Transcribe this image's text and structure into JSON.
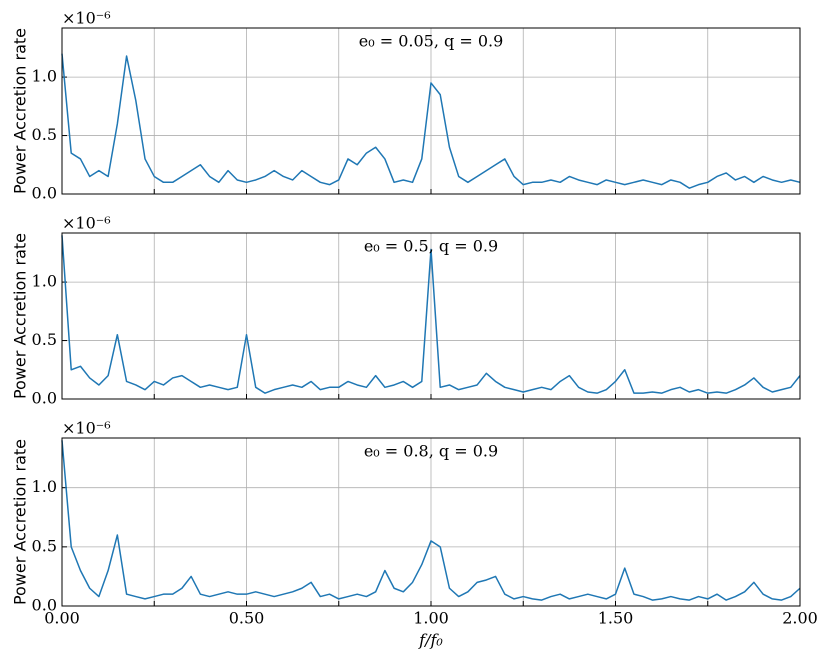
{
  "chart_data": [
    {
      "type": "line",
      "title": "e₀ = 0.05, q = 0.9",
      "offset_text": "×10⁻⁶",
      "y_label": "Power Accretion rate",
      "x": [
        0,
        0.025,
        0.05,
        0.075,
        0.1,
        0.125,
        0.15,
        0.175,
        0.2,
        0.225,
        0.25,
        0.275,
        0.3,
        0.325,
        0.35,
        0.375,
        0.4,
        0.425,
        0.45,
        0.475,
        0.5,
        0.525,
        0.55,
        0.575,
        0.6,
        0.625,
        0.65,
        0.675,
        0.7,
        0.725,
        0.75,
        0.775,
        0.8,
        0.825,
        0.85,
        0.875,
        0.9,
        0.925,
        0.95,
        0.975,
        1,
        1.025,
        1.05,
        1.075,
        1.1,
        1.125,
        1.15,
        1.175,
        1.2,
        1.225,
        1.25,
        1.275,
        1.3,
        1.325,
        1.35,
        1.375,
        1.4,
        1.425,
        1.45,
        1.475,
        1.5,
        1.525,
        1.55,
        1.575,
        1.6,
        1.625,
        1.65,
        1.675,
        1.7,
        1.725,
        1.75,
        1.775,
        1.8,
        1.825,
        1.85,
        1.875,
        1.9,
        1.925,
        1.95,
        1.975,
        2
      ],
      "series": [
        {
          "color": "#1f77b4",
          "values": [
            1.2,
            0.35,
            0.3,
            0.15,
            0.2,
            0.15,
            0.6,
            1.18,
            0.8,
            0.3,
            0.15,
            0.1,
            0.1,
            0.15,
            0.2,
            0.25,
            0.15,
            0.1,
            0.2,
            0.12,
            0.1,
            0.12,
            0.15,
            0.2,
            0.15,
            0.12,
            0.2,
            0.15,
            0.1,
            0.08,
            0.12,
            0.3,
            0.25,
            0.35,
            0.4,
            0.3,
            0.1,
            0.12,
            0.1,
            0.3,
            0.95,
            0.85,
            0.4,
            0.15,
            0.1,
            0.15,
            0.2,
            0.25,
            0.3,
            0.15,
            0.08,
            0.1,
            0.1,
            0.12,
            0.1,
            0.15,
            0.12,
            0.1,
            0.08,
            0.12,
            0.1,
            0.08,
            0.1,
            0.12,
            0.1,
            0.08,
            0.12,
            0.1,
            0.05,
            0.08,
            0.1,
            0.15,
            0.18,
            0.12,
            0.15,
            0.1,
            0.15,
            0.12,
            0.1,
            0.12,
            0.1
          ]
        }
      ],
      "xlim": [
        0,
        2
      ],
      "ylim": [
        0,
        1.42
      ],
      "xticks": [
        0,
        0.25,
        0.5,
        0.75,
        1,
        1.25,
        1.5,
        1.75,
        2
      ],
      "yticks": [
        {
          "value": 0,
          "label": "0.0"
        },
        0.5,
        {
          "value": 1,
          "label": "1.0"
        }
      ],
      "grid": true
    },
    {
      "type": "line",
      "title": "e₀ = 0.5, q = 0.9",
      "offset_text": "×10⁻⁶",
      "y_label": "Power Accretion rate",
      "x": [
        0,
        0.025,
        0.05,
        0.075,
        0.1,
        0.125,
        0.15,
        0.175,
        0.2,
        0.225,
        0.25,
        0.275,
        0.3,
        0.325,
        0.35,
        0.375,
        0.4,
        0.425,
        0.45,
        0.475,
        0.5,
        0.525,
        0.55,
        0.575,
        0.6,
        0.625,
        0.65,
        0.675,
        0.7,
        0.725,
        0.75,
        0.775,
        0.8,
        0.825,
        0.85,
        0.875,
        0.9,
        0.925,
        0.95,
        0.975,
        1,
        1.025,
        1.05,
        1.075,
        1.1,
        1.125,
        1.15,
        1.175,
        1.2,
        1.225,
        1.25,
        1.275,
        1.3,
        1.325,
        1.35,
        1.375,
        1.4,
        1.425,
        1.45,
        1.475,
        1.5,
        1.525,
        1.55,
        1.575,
        1.6,
        1.625,
        1.65,
        1.675,
        1.7,
        1.725,
        1.75,
        1.775,
        1.8,
        1.825,
        1.85,
        1.875,
        1.9,
        1.925,
        1.95,
        1.975,
        2
      ],
      "series": [
        {
          "color": "#1f77b4",
          "values": [
            1.4,
            0.25,
            0.28,
            0.18,
            0.12,
            0.2,
            0.55,
            0.15,
            0.12,
            0.08,
            0.15,
            0.12,
            0.18,
            0.2,
            0.15,
            0.1,
            0.12,
            0.1,
            0.08,
            0.1,
            0.55,
            0.1,
            0.05,
            0.08,
            0.1,
            0.12,
            0.1,
            0.15,
            0.08,
            0.1,
            0.1,
            0.15,
            0.12,
            0.1,
            0.2,
            0.1,
            0.12,
            0.15,
            0.1,
            0.15,
            1.28,
            0.1,
            0.12,
            0.08,
            0.1,
            0.12,
            0.22,
            0.15,
            0.1,
            0.08,
            0.06,
            0.08,
            0.1,
            0.08,
            0.15,
            0.2,
            0.1,
            0.06,
            0.05,
            0.08,
            0.15,
            0.25,
            0.05,
            0.05,
            0.06,
            0.05,
            0.08,
            0.1,
            0.06,
            0.08,
            0.05,
            0.06,
            0.05,
            0.08,
            0.12,
            0.18,
            0.1,
            0.06,
            0.08,
            0.1,
            0.2
          ]
        }
      ],
      "xlim": [
        0,
        2
      ],
      "ylim": [
        0,
        1.42
      ],
      "xticks": [
        0,
        0.25,
        0.5,
        0.75,
        1,
        1.25,
        1.5,
        1.75,
        2
      ],
      "yticks": [
        {
          "value": 0,
          "label": "0.0"
        },
        0.5,
        {
          "value": 1,
          "label": "1.0"
        }
      ],
      "grid": true
    },
    {
      "type": "line",
      "title": "e₀ = 0.8, q = 0.9",
      "offset_text": "×10⁻⁶",
      "y_label": "Power Accretion rate",
      "x_label": "f/f₀",
      "x": [
        0,
        0.025,
        0.05,
        0.075,
        0.1,
        0.125,
        0.15,
        0.175,
        0.2,
        0.225,
        0.25,
        0.275,
        0.3,
        0.325,
        0.35,
        0.375,
        0.4,
        0.425,
        0.45,
        0.475,
        0.5,
        0.525,
        0.55,
        0.575,
        0.6,
        0.625,
        0.65,
        0.675,
        0.7,
        0.725,
        0.75,
        0.775,
        0.8,
        0.825,
        0.85,
        0.875,
        0.9,
        0.925,
        0.95,
        0.975,
        1,
        1.025,
        1.05,
        1.075,
        1.1,
        1.125,
        1.15,
        1.175,
        1.2,
        1.225,
        1.25,
        1.275,
        1.3,
        1.325,
        1.35,
        1.375,
        1.4,
        1.425,
        1.45,
        1.475,
        1.5,
        1.525,
        1.55,
        1.575,
        1.6,
        1.625,
        1.65,
        1.675,
        1.7,
        1.725,
        1.75,
        1.775,
        1.8,
        1.825,
        1.85,
        1.875,
        1.9,
        1.925,
        1.95,
        1.975,
        2
      ],
      "series": [
        {
          "color": "#1f77b4",
          "values": [
            1.4,
            0.5,
            0.3,
            0.15,
            0.08,
            0.3,
            0.6,
            0.1,
            0.08,
            0.06,
            0.08,
            0.1,
            0.1,
            0.15,
            0.25,
            0.1,
            0.08,
            0.1,
            0.12,
            0.1,
            0.1,
            0.12,
            0.1,
            0.08,
            0.1,
            0.12,
            0.15,
            0.2,
            0.08,
            0.1,
            0.06,
            0.08,
            0.1,
            0.08,
            0.12,
            0.3,
            0.15,
            0.12,
            0.2,
            0.35,
            0.55,
            0.5,
            0.15,
            0.08,
            0.12,
            0.2,
            0.22,
            0.25,
            0.1,
            0.06,
            0.08,
            0.06,
            0.05,
            0.08,
            0.1,
            0.06,
            0.08,
            0.1,
            0.08,
            0.06,
            0.1,
            0.32,
            0.1,
            0.08,
            0.05,
            0.06,
            0.08,
            0.06,
            0.05,
            0.08,
            0.06,
            0.1,
            0.05,
            0.08,
            0.12,
            0.2,
            0.1,
            0.06,
            0.05,
            0.08,
            0.15
          ]
        }
      ],
      "xlim": [
        0,
        2
      ],
      "ylim": [
        0,
        1.42
      ],
      "xticks": [
        {
          "value": 0,
          "label": "0.00"
        },
        0.25,
        {
          "value": 0.5,
          "label": "0.50"
        },
        0.75,
        {
          "value": 1,
          "label": "1.00"
        },
        1.25,
        {
          "value": 1.5,
          "label": "1.50"
        },
        1.75,
        {
          "value": 2,
          "label": "2.00"
        }
      ],
      "yticks": [
        {
          "value": 0,
          "label": "0.0"
        },
        0.5,
        {
          "value": 1,
          "label": "1.0"
        }
      ],
      "grid": true
    }
  ]
}
